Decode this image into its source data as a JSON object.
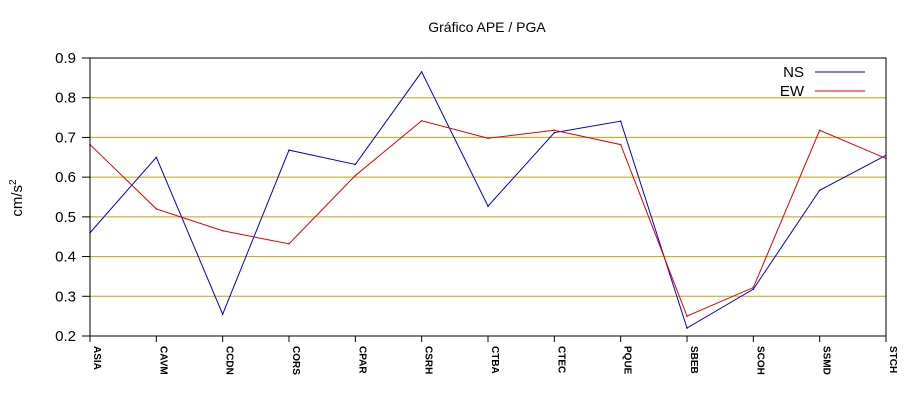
{
  "chart_data": {
    "type": "line",
    "title": "Gráfico  APE / PGA",
    "xlabel": "",
    "ylabel": "cm/s",
    "ylabel_superscript": "2",
    "categories": [
      "ASIA",
      "CAVM",
      "CCDN",
      "CORS",
      "CPAR",
      "CSRH",
      "CTBA",
      "CTEC",
      "PQUE",
      "SBEB",
      "SCOH",
      "SSMD",
      "STCH"
    ],
    "ylim": [
      0.2,
      0.9
    ],
    "yticks": [
      0.2,
      0.3,
      0.4,
      0.5,
      0.6,
      0.7,
      0.8,
      0.9
    ],
    "ytick_labels": [
      "0.2",
      "0.3",
      "0.4",
      "0.5",
      "0.6",
      "0.7",
      "0.8",
      "0.9"
    ],
    "grid": "horizontal",
    "legend_position": "top-right",
    "series": [
      {
        "name": "NS",
        "color": "#0000cc",
        "values": [
          0.46,
          0.65,
          0.255,
          0.668,
          0.632,
          0.865,
          0.527,
          0.712,
          0.741,
          0.22,
          0.318,
          0.567,
          0.655
        ]
      },
      {
        "name": "EW",
        "color": "#dd0000",
        "values": [
          0.682,
          0.52,
          0.465,
          0.432,
          0.604,
          0.742,
          0.698,
          0.718,
          0.682,
          0.25,
          0.322,
          0.718,
          0.647
        ]
      }
    ],
    "grid_color": "#c8a000",
    "axis_color": "#000000"
  }
}
